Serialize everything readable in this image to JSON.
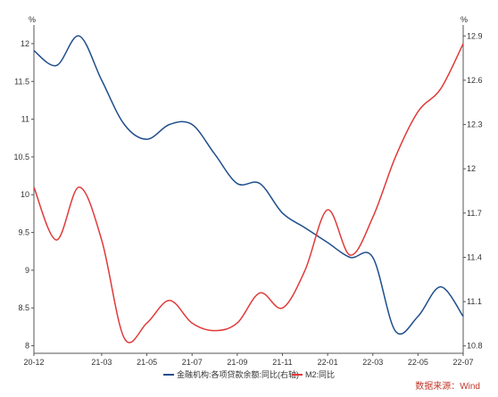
{
  "chart_data": {
    "type": "line",
    "y_left_unit": "%",
    "y_right_unit": "%",
    "y_left_ticks": [
      "8",
      "8.5",
      "9",
      "9.5",
      "10",
      "10.5",
      "11",
      "11.5",
      "12"
    ],
    "y_right_ticks": [
      "10.8",
      "11.1",
      "11.4",
      "11.7",
      "12",
      "12.3",
      "12.6",
      "12.9"
    ],
    "x_ticks": [
      "20-12",
      "21-03",
      "21-05",
      "21-07",
      "21-09",
      "21-11",
      "22-01",
      "22-03",
      "22-05",
      "22-07"
    ],
    "ylim_left": [
      7.9,
      12.2
    ],
    "ylim_right": [
      10.75,
      12.95
    ],
    "grid": false,
    "legend_position": "bottom",
    "series": [
      {
        "name": "金融机构:各项贷款余额:同比(右轴)",
        "axis": "right",
        "color": "#1f4e8c",
        "points": [
          [
            "2020-12",
            12.8
          ],
          [
            "2021-01",
            12.7
          ],
          [
            "2021-02",
            12.9
          ],
          [
            "2021-03",
            12.6
          ],
          [
            "2021-04",
            12.3
          ],
          [
            "2021-05",
            12.2
          ],
          [
            "2021-06",
            12.3
          ],
          [
            "2021-07",
            12.3
          ],
          [
            "2021-08",
            12.1
          ],
          [
            "2021-09",
            11.9
          ],
          [
            "2021-10",
            11.9
          ],
          [
            "2021-11",
            11.7
          ],
          [
            "2021-12",
            11.6
          ],
          [
            "2022-01",
            11.5
          ],
          [
            "2022-02",
            11.4
          ],
          [
            "2022-03",
            11.4
          ],
          [
            "2022-04",
            10.9
          ],
          [
            "2022-05",
            11.0
          ],
          [
            "2022-06",
            11.2
          ],
          [
            "2022-07",
            11.0
          ]
        ]
      },
      {
        "name": "M2:同比",
        "axis": "left",
        "color": "#e03a3a",
        "points": [
          [
            "2020-12",
            10.1
          ],
          [
            "2021-01",
            9.4
          ],
          [
            "2021-02",
            10.1
          ],
          [
            "2021-03",
            9.4
          ],
          [
            "2021-04",
            8.1
          ],
          [
            "2021-05",
            8.3
          ],
          [
            "2021-06",
            8.6
          ],
          [
            "2021-07",
            8.3
          ],
          [
            "2021-08",
            8.2
          ],
          [
            "2021-09",
            8.3
          ],
          [
            "2021-10",
            8.7
          ],
          [
            "2021-11",
            8.5
          ],
          [
            "2021-12",
            9.0
          ],
          [
            "2022-01",
            9.8
          ],
          [
            "2022-02",
            9.2
          ],
          [
            "2022-03",
            9.7
          ],
          [
            "2022-04",
            10.5
          ],
          [
            "2022-05",
            11.1
          ],
          [
            "2022-06",
            11.4
          ],
          [
            "2022-07",
            12.0
          ]
        ]
      }
    ],
    "source": "数据来源：Wind"
  }
}
